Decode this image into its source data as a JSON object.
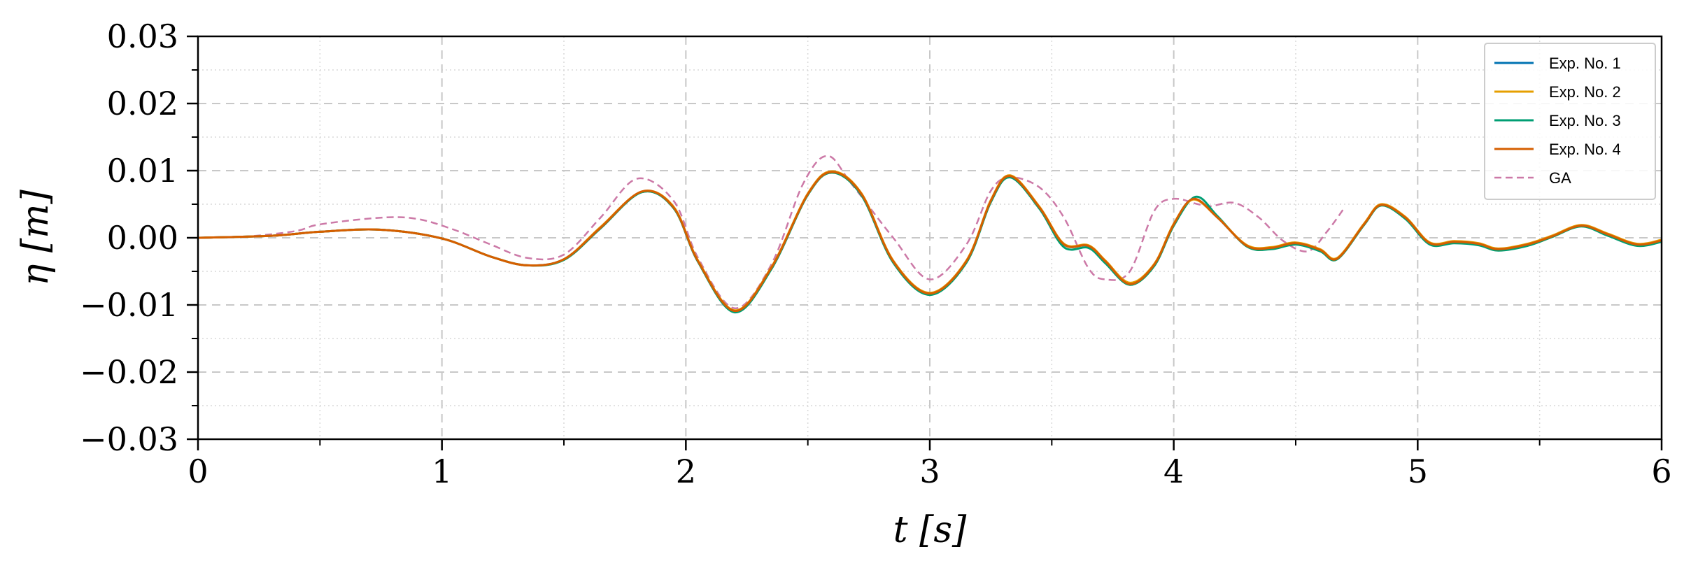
{
  "chart_data": {
    "type": "line",
    "xlabel": "t [s]",
    "ylabel": "η [m]",
    "xlim": [
      0,
      6
    ],
    "ylim": [
      -0.03,
      0.03
    ],
    "x_ticks": [
      0,
      1,
      2,
      3,
      4,
      5,
      6
    ],
    "x_tick_labels": [
      "0",
      "1",
      "2",
      "3",
      "4",
      "5",
      "6"
    ],
    "y_ticks": [
      -0.03,
      -0.02,
      -0.01,
      0.0,
      0.01,
      0.02,
      0.03
    ],
    "y_tick_labels": [
      "−0.03",
      "−0.02",
      "−0.01",
      "0.00",
      "0.01",
      "0.02",
      "0.03"
    ],
    "grid": true,
    "legend_position": "top-right",
    "series": [
      {
        "name": "Exp. No. 1",
        "color": "#0072b2",
        "dash": "solid",
        "points": [
          [
            0,
            0
          ],
          [
            0.3,
            0.0003
          ],
          [
            0.5,
            0.0009
          ],
          [
            0.75,
            0.0012
          ],
          [
            1.0,
            -0.0001
          ],
          [
            1.2,
            -0.0028
          ],
          [
            1.35,
            -0.0041
          ],
          [
            1.5,
            -0.0032
          ],
          [
            1.65,
            0.0015
          ],
          [
            1.82,
            0.0068
          ],
          [
            1.95,
            0.0045
          ],
          [
            2.05,
            -0.0035
          ],
          [
            2.2,
            -0.011
          ],
          [
            2.35,
            -0.0045
          ],
          [
            2.5,
            0.0065
          ],
          [
            2.6,
            0.0098
          ],
          [
            2.72,
            0.0065
          ],
          [
            2.85,
            -0.0035
          ],
          [
            3.0,
            -0.0083
          ],
          [
            3.15,
            -0.0035
          ],
          [
            3.25,
            0.0055
          ],
          [
            3.33,
            0.0092
          ],
          [
            3.45,
            0.0045
          ],
          [
            3.55,
            -0.001
          ],
          [
            3.65,
            -0.0012
          ],
          [
            3.72,
            -0.0035
          ],
          [
            3.82,
            -0.0068
          ],
          [
            3.92,
            -0.004
          ],
          [
            4.0,
            0.002
          ],
          [
            4.08,
            0.0058
          ],
          [
            4.18,
            0.003
          ],
          [
            4.3,
            -0.0012
          ],
          [
            4.4,
            -0.0015
          ],
          [
            4.5,
            -0.0008
          ],
          [
            4.6,
            -0.0018
          ],
          [
            4.67,
            -0.0031
          ],
          [
            4.78,
            0.002
          ],
          [
            4.85,
            0.0049
          ],
          [
            4.95,
            0.003
          ],
          [
            5.05,
            -0.0008
          ],
          [
            5.15,
            -0.0006
          ],
          [
            5.25,
            -0.0009
          ],
          [
            5.33,
            -0.0017
          ],
          [
            5.45,
            -0.001
          ],
          [
            5.55,
            0.0002
          ],
          [
            5.67,
            0.0018
          ],
          [
            5.78,
            0.0005
          ],
          [
            5.9,
            -0.001
          ],
          [
            6.0,
            -0.0004
          ]
        ]
      },
      {
        "name": "Exp. No. 2",
        "color": "#e69f00",
        "dash": "solid",
        "points": [
          [
            0,
            0
          ],
          [
            0.3,
            0.0003
          ],
          [
            0.5,
            0.0009
          ],
          [
            0.75,
            0.0012
          ],
          [
            1.0,
            -0.0001
          ],
          [
            1.2,
            -0.0028
          ],
          [
            1.35,
            -0.0041
          ],
          [
            1.5,
            -0.0032
          ],
          [
            1.65,
            0.0016
          ],
          [
            1.82,
            0.0069
          ],
          [
            1.95,
            0.0046
          ],
          [
            2.05,
            -0.0034
          ],
          [
            2.2,
            -0.0108
          ],
          [
            2.35,
            -0.0044
          ],
          [
            2.5,
            0.0066
          ],
          [
            2.6,
            0.0099
          ],
          [
            2.72,
            0.0066
          ],
          [
            2.85,
            -0.0034
          ],
          [
            3.0,
            -0.0082
          ],
          [
            3.15,
            -0.0034
          ],
          [
            3.25,
            0.0056
          ],
          [
            3.33,
            0.0093
          ],
          [
            3.45,
            0.0046
          ],
          [
            3.55,
            -0.0009
          ],
          [
            3.65,
            -0.0011
          ],
          [
            3.72,
            -0.0034
          ],
          [
            3.82,
            -0.0067
          ],
          [
            3.92,
            -0.0039
          ],
          [
            4.0,
            0.0021
          ],
          [
            4.08,
            0.0057
          ],
          [
            4.18,
            0.003
          ],
          [
            4.3,
            -0.0011
          ],
          [
            4.4,
            -0.0014
          ],
          [
            4.5,
            -0.0007
          ],
          [
            4.6,
            -0.0017
          ],
          [
            4.67,
            -0.003
          ],
          [
            4.78,
            0.0021
          ],
          [
            4.85,
            0.005
          ],
          [
            4.95,
            0.0031
          ],
          [
            5.05,
            -0.0007
          ],
          [
            5.15,
            -0.0005
          ],
          [
            5.25,
            -0.0008
          ],
          [
            5.33,
            -0.0016
          ],
          [
            5.45,
            -0.0009
          ],
          [
            5.55,
            0.0003
          ],
          [
            5.67,
            0.0019
          ],
          [
            5.78,
            0.0006
          ],
          [
            5.9,
            -0.0009
          ],
          [
            6.0,
            -0.0003
          ]
        ]
      },
      {
        "name": "Exp. No. 3",
        "color": "#009e73",
        "dash": "solid",
        "points": [
          [
            0,
            0
          ],
          [
            0.3,
            0.0003
          ],
          [
            0.5,
            0.0009
          ],
          [
            0.75,
            0.0012
          ],
          [
            1.0,
            -0.0001
          ],
          [
            1.2,
            -0.0028
          ],
          [
            1.35,
            -0.0041
          ],
          [
            1.5,
            -0.0033
          ],
          [
            1.65,
            0.0014
          ],
          [
            1.82,
            0.0068
          ],
          [
            1.95,
            0.0044
          ],
          [
            2.05,
            -0.0036
          ],
          [
            2.2,
            -0.0111
          ],
          [
            2.35,
            -0.0047
          ],
          [
            2.5,
            0.0064
          ],
          [
            2.6,
            0.0097
          ],
          [
            2.72,
            0.0063
          ],
          [
            2.85,
            -0.0037
          ],
          [
            3.0,
            -0.0085
          ],
          [
            3.15,
            -0.0037
          ],
          [
            3.25,
            0.0053
          ],
          [
            3.33,
            0.009
          ],
          [
            3.45,
            0.0043
          ],
          [
            3.55,
            -0.0014
          ],
          [
            3.65,
            -0.0015
          ],
          [
            3.72,
            -0.0038
          ],
          [
            3.82,
            -0.007
          ],
          [
            3.92,
            -0.0042
          ],
          [
            4.0,
            0.0018
          ],
          [
            4.09,
            0.0061
          ],
          [
            4.18,
            0.0032
          ],
          [
            4.3,
            -0.0013
          ],
          [
            4.4,
            -0.0017
          ],
          [
            4.5,
            -0.001
          ],
          [
            4.6,
            -0.002
          ],
          [
            4.67,
            -0.0032
          ],
          [
            4.78,
            0.0019
          ],
          [
            4.85,
            0.0048
          ],
          [
            4.95,
            0.0028
          ],
          [
            5.05,
            -0.001
          ],
          [
            5.15,
            -0.0008
          ],
          [
            5.25,
            -0.0011
          ],
          [
            5.33,
            -0.0019
          ],
          [
            5.45,
            -0.0012
          ],
          [
            5.55,
            0.0001
          ],
          [
            5.67,
            0.0017
          ],
          [
            5.78,
            0.0003
          ],
          [
            5.9,
            -0.0012
          ],
          [
            6.0,
            -0.0006
          ]
        ]
      },
      {
        "name": "Exp. No. 4",
        "color": "#d55e00",
        "dash": "solid",
        "points": [
          [
            0,
            0
          ],
          [
            0.3,
            0.0003
          ],
          [
            0.5,
            0.0009
          ],
          [
            0.75,
            0.0012
          ],
          [
            1.0,
            -0.0001
          ],
          [
            1.2,
            -0.0028
          ],
          [
            1.35,
            -0.0041
          ],
          [
            1.5,
            -0.0032
          ],
          [
            1.65,
            0.0015
          ],
          [
            1.82,
            0.0069
          ],
          [
            1.95,
            0.0045
          ],
          [
            2.05,
            -0.0035
          ],
          [
            2.2,
            -0.0109
          ],
          [
            2.35,
            -0.0045
          ],
          [
            2.5,
            0.0065
          ],
          [
            2.6,
            0.0098
          ],
          [
            2.72,
            0.0065
          ],
          [
            2.85,
            -0.0035
          ],
          [
            3.0,
            -0.0083
          ],
          [
            3.15,
            -0.0035
          ],
          [
            3.25,
            0.0055
          ],
          [
            3.33,
            0.0092
          ],
          [
            3.45,
            0.0045
          ],
          [
            3.55,
            -0.001
          ],
          [
            3.65,
            -0.0012
          ],
          [
            3.72,
            -0.0035
          ],
          [
            3.82,
            -0.0069
          ],
          [
            3.92,
            -0.004
          ],
          [
            4.0,
            0.002
          ],
          [
            4.08,
            0.0058
          ],
          [
            4.18,
            0.003
          ],
          [
            4.3,
            -0.0012
          ],
          [
            4.4,
            -0.0015
          ],
          [
            4.5,
            -0.0008
          ],
          [
            4.6,
            -0.0018
          ],
          [
            4.67,
            -0.0031
          ],
          [
            4.78,
            0.002
          ],
          [
            4.85,
            0.0049
          ],
          [
            4.95,
            0.003
          ],
          [
            5.05,
            -0.0008
          ],
          [
            5.15,
            -0.0006
          ],
          [
            5.25,
            -0.0009
          ],
          [
            5.33,
            -0.0017
          ],
          [
            5.45,
            -0.001
          ],
          [
            5.55,
            0.0002
          ],
          [
            5.67,
            0.0018
          ],
          [
            5.78,
            0.0005
          ],
          [
            5.9,
            -0.001
          ],
          [
            6.0,
            -0.0004
          ]
        ]
      },
      {
        "name": "GA",
        "color": "#cc79a7",
        "dash": "dashed",
        "points": [
          [
            0,
            0
          ],
          [
            0.2,
            0.0002
          ],
          [
            0.4,
            0.001
          ],
          [
            0.5,
            0.002
          ],
          [
            0.75,
            0.003
          ],
          [
            0.9,
            0.0028
          ],
          [
            1.05,
            0.0012
          ],
          [
            1.2,
            -0.001
          ],
          [
            1.35,
            -0.003
          ],
          [
            1.5,
            -0.0025
          ],
          [
            1.65,
            0.003
          ],
          [
            1.8,
            0.0088
          ],
          [
            1.95,
            0.0055
          ],
          [
            2.05,
            -0.003
          ],
          [
            2.2,
            -0.0105
          ],
          [
            2.35,
            -0.004
          ],
          [
            2.48,
            0.008
          ],
          [
            2.58,
            0.0122
          ],
          [
            2.68,
            0.008
          ],
          [
            2.85,
            0.0
          ],
          [
            3.0,
            -0.0062
          ],
          [
            3.15,
            -0.001
          ],
          [
            3.25,
            0.007
          ],
          [
            3.33,
            0.009
          ],
          [
            3.45,
            0.0075
          ],
          [
            3.55,
            0.003
          ],
          [
            3.65,
            -0.0045
          ],
          [
            3.72,
            -0.0062
          ],
          [
            3.82,
            -0.005
          ],
          [
            3.92,
            0.004
          ],
          [
            4.0,
            0.0058
          ],
          [
            4.1,
            0.005
          ],
          [
            4.15,
            0.0047
          ],
          [
            4.25,
            0.0052
          ],
          [
            4.35,
            0.003
          ],
          [
            4.45,
            -0.0005
          ],
          [
            4.55,
            -0.002
          ],
          [
            4.63,
            0.001
          ],
          [
            4.7,
            0.0045
          ]
        ]
      }
    ]
  }
}
